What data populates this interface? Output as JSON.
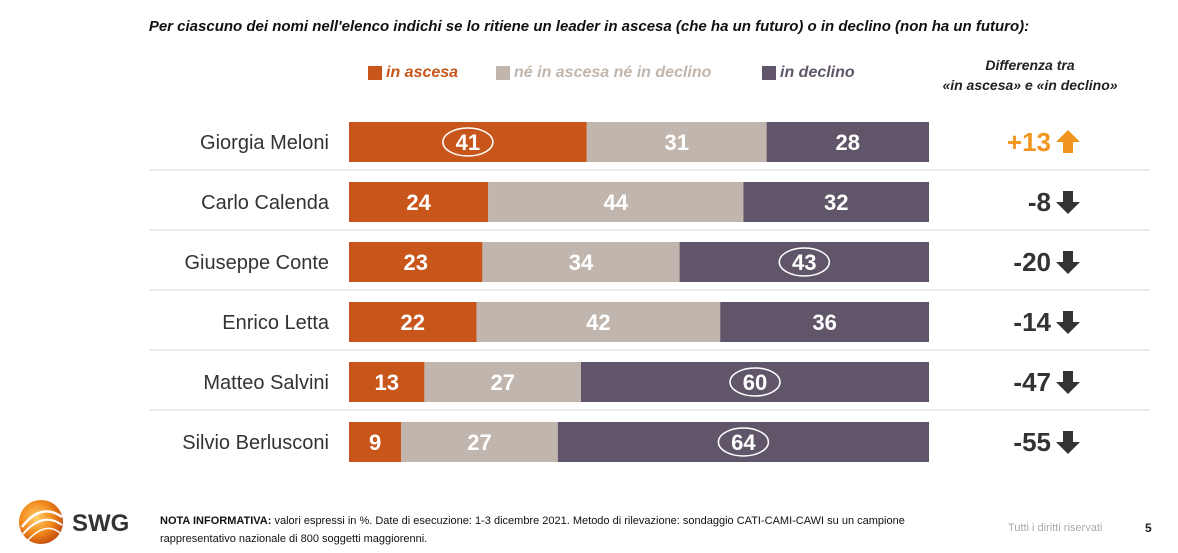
{
  "page": {
    "title": "Per ciascuno dei nomi nell'elenco indichi se lo ritiene un leader in ascesa (che ha un futuro) o in declino (non ha un futuro):",
    "diff_header_line1": "Differenza tra",
    "diff_header_line2": "«in ascesa» e «in declino»",
    "note_label": "NOTA INFORMATIVA:",
    "note_text": " valori espressi in %. Date di esecuzione: 1-3 dicembre 2021. Metodo di rilevazione: sondaggio CATI-CAMI-CAWI su un campione rappresentativo nazionale di 800 soggetti maggiorenni.",
    "rights": "Tutti i diritti riservati",
    "page_number": "5",
    "logo_text": "SWG"
  },
  "colors": {
    "ascesa": "#c8561a",
    "neutral": "#c0b6ad",
    "declino": "#615669",
    "pos_diff": "#f2951f",
    "neg_diff": "#333333"
  },
  "chart_data": {
    "type": "bar",
    "orientation": "horizontal",
    "stacked": true,
    "categories": [
      "Giorgia Meloni",
      "Carlo Calenda",
      "Giuseppe Conte",
      "Enrico Letta",
      "Matteo Salvini",
      "Silvio Berlusconi"
    ],
    "series": [
      {
        "name": "in ascesa",
        "values": [
          41,
          24,
          23,
          22,
          13,
          9
        ]
      },
      {
        "name": "né in ascesa né in declino",
        "values": [
          31,
          44,
          34,
          42,
          27,
          27
        ]
      },
      {
        "name": "in declino",
        "values": [
          28,
          32,
          43,
          36,
          60,
          64
        ]
      }
    ],
    "highlighted": [
      {
        "category": "Giorgia Meloni",
        "series": "in ascesa"
      },
      {
        "category": "Giuseppe Conte",
        "series": "in declino"
      },
      {
        "category": "Matteo Salvini",
        "series": "in declino"
      },
      {
        "category": "Silvio Berlusconi",
        "series": "in declino"
      }
    ],
    "differences": [
      "+13",
      "-8",
      "-20",
      "-14",
      "-47",
      "-55"
    ],
    "difference_direction": [
      "up",
      "down",
      "down",
      "down",
      "down",
      "down"
    ],
    "xlim": [
      0,
      100
    ],
    "legend_position": "top"
  }
}
